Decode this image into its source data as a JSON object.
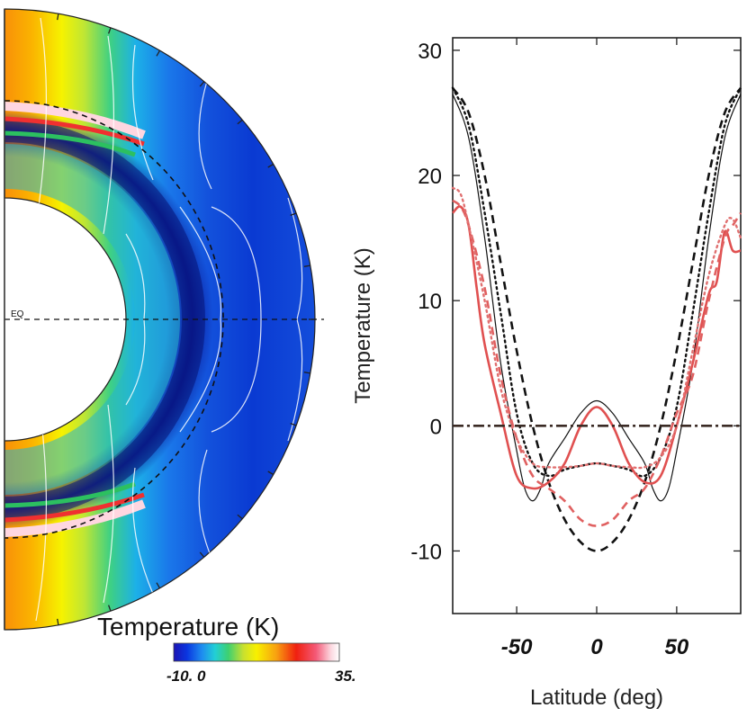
{
  "chart_data": [
    {
      "type": "heatmap",
      "title": "Temperature (K)",
      "description_label": "EQ",
      "colorbar": {
        "title": "Temperature (K)",
        "range": [
          -10,
          35
        ],
        "tick_labels": [
          "-10. 0",
          "35."
        ],
        "colors": [
          "#1c14b4",
          "#0a36e0",
          "#1e8cf0",
          "#22cfd6",
          "#3ed070",
          "#c8e030",
          "#f8f000",
          "#f8a010",
          "#f02010",
          "#f45a78",
          "#fcd8e0",
          "#ffffff"
        ]
      }
    },
    {
      "type": "line",
      "xlabel": "Latitude (deg)",
      "ylabel": "Temperature (K)",
      "xlim": [
        -90,
        90
      ],
      "ylim": [
        -15,
        31
      ],
      "xticks": [
        -50,
        0,
        50
      ],
      "xtick_labels": [
        "-50",
        "0",
        "50"
      ],
      "yticks": [
        30,
        20,
        10,
        0,
        -10
      ],
      "ytick_labels": [
        "30",
        "20",
        "10",
        "0",
        "-10"
      ],
      "series": [
        {
          "name": "black solid",
          "color": "#111111",
          "style": "solid",
          "width": 1.2,
          "x": [
            -90,
            -80,
            -70,
            -60,
            -50,
            -45,
            -40,
            -35,
            -30,
            -20,
            -10,
            0,
            10,
            20,
            30,
            35,
            40,
            45,
            50,
            60,
            70,
            80,
            90
          ],
          "y": [
            26.5,
            23,
            15,
            5,
            -2,
            -5,
            -6,
            -5,
            -3,
            -1,
            1,
            2,
            1,
            -1,
            -3,
            -5,
            -6,
            -5,
            -2,
            5,
            15,
            23,
            26.5
          ]
        },
        {
          "name": "black dashed",
          "color": "#111111",
          "style": "dashed",
          "width": 2.6,
          "x": [
            -90,
            -80,
            -70,
            -60,
            -50,
            -40,
            -30,
            -20,
            -10,
            0,
            10,
            20,
            30,
            40,
            50,
            60,
            70,
            80,
            90
          ],
          "y": [
            27,
            25,
            20,
            13,
            6,
            0,
            -4.5,
            -7.5,
            -9.3,
            -10,
            -9.3,
            -7.5,
            -4.5,
            0,
            6,
            13,
            20,
            25,
            27
          ]
        },
        {
          "name": "black dotted",
          "color": "#111111",
          "style": "dotted",
          "width": 2.4,
          "x": [
            -90,
            -80,
            -70,
            -60,
            -50,
            -40,
            -30,
            -20,
            -10,
            0,
            10,
            20,
            30,
            40,
            50,
            60,
            70,
            80,
            90
          ],
          "y": [
            27,
            24,
            17,
            9,
            1,
            -3,
            -4,
            -3.5,
            -3.2,
            -3,
            -3.2,
            -3.5,
            -4,
            -2.5,
            1.5,
            9,
            17,
            24,
            27
          ]
        },
        {
          "name": "red solid",
          "color": "#e05050",
          "style": "solid",
          "width": 2.6,
          "x": [
            -90,
            -85,
            -80,
            -75,
            -70,
            -60,
            -50,
            -40,
            -30,
            -20,
            -10,
            0,
            10,
            20,
            30,
            40,
            50,
            60,
            70,
            75,
            80,
            85,
            90
          ],
          "y": [
            17,
            17.5,
            16,
            11,
            6.5,
            1,
            -4,
            -5,
            -4.5,
            -3,
            0,
            1.5,
            0,
            -3,
            -4.5,
            -4,
            0,
            5,
            10.5,
            11.5,
            15.5,
            14,
            14
          ]
        },
        {
          "name": "red dashed",
          "color": "#e06060",
          "style": "dashed",
          "width": 2.6,
          "x": [
            -90,
            -85,
            -80,
            -70,
            -60,
            -50,
            -40,
            -30,
            -20,
            -10,
            0,
            10,
            20,
            30,
            40,
            50,
            60,
            70,
            80,
            85,
            90
          ],
          "y": [
            18,
            17.5,
            16,
            11,
            4,
            -1,
            -4,
            -5,
            -6,
            -7.5,
            -8,
            -7.5,
            -6,
            -5,
            -2.5,
            1,
            4,
            10,
            15,
            16,
            17
          ]
        },
        {
          "name": "red dotted",
          "color": "#e07070",
          "style": "dotted",
          "width": 2.4,
          "x": [
            -90,
            -85,
            -80,
            -70,
            -60,
            -50,
            -40,
            -30,
            -20,
            -10,
            0,
            10,
            20,
            30,
            40,
            50,
            60,
            70,
            80,
            85,
            90
          ],
          "y": [
            19,
            18.5,
            16,
            10,
            3,
            -1,
            -3,
            -3.3,
            -3.3,
            -3.2,
            -3,
            -3.2,
            -3.3,
            -3.3,
            -2.5,
            0,
            6,
            12,
            16,
            16.5,
            15
          ]
        },
        {
          "name": "zero line",
          "color": "#3a2a24",
          "style": "dashdot",
          "width": 2.6,
          "x": [
            -90,
            90
          ],
          "y": [
            0,
            0
          ]
        }
      ]
    }
  ]
}
